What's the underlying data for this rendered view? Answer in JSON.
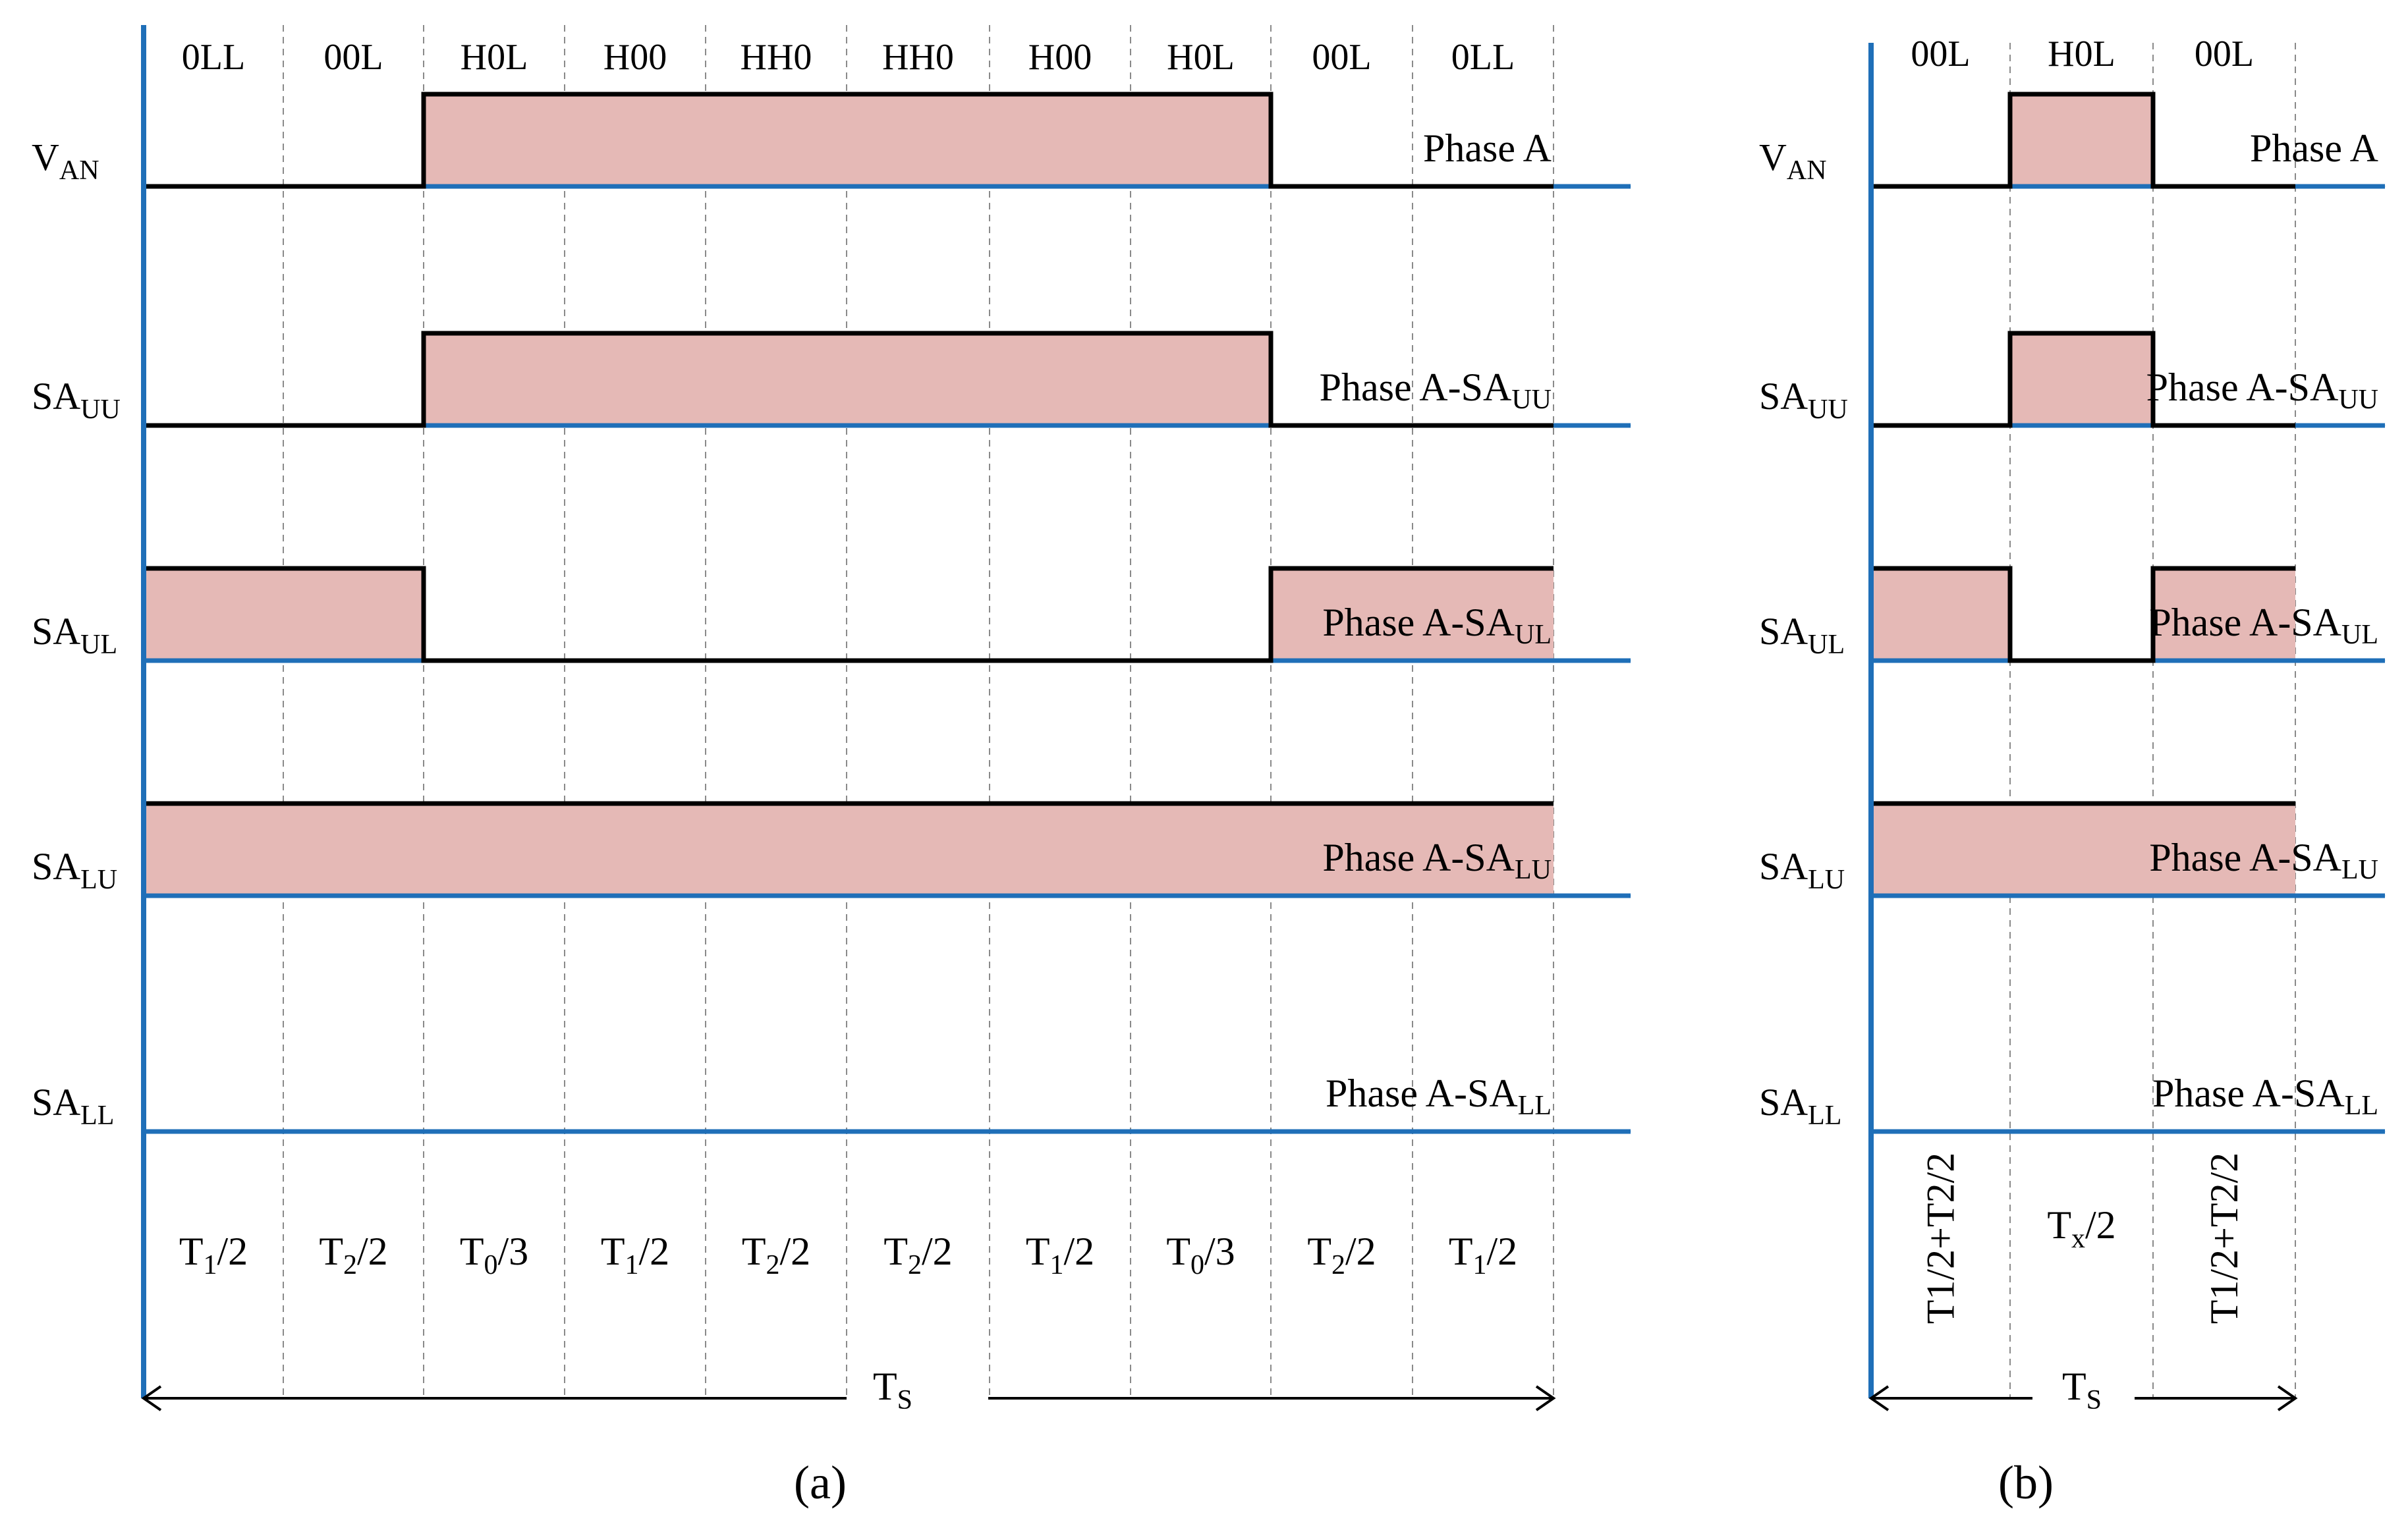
{
  "colors": {
    "axis": "#1f6fb8",
    "signal": "#000000",
    "fill": "#e5b9b6",
    "grid": "#8a8a8a"
  },
  "panel_a": {
    "caption": "(a)",
    "states": [
      "0LL",
      "00L",
      "H0L",
      "H00",
      "HH0",
      "HH0",
      "H00",
      "H0L",
      "00L",
      "0LL"
    ],
    "segments": [
      {
        "base": "T",
        "sub": "1",
        "tail": "/2"
      },
      {
        "base": "T",
        "sub": "2",
        "tail": "/2"
      },
      {
        "base": "T",
        "sub": "0",
        "tail": "/3"
      },
      {
        "base": "T",
        "sub": "1",
        "tail": "/2"
      },
      {
        "base": "T",
        "sub": "2",
        "tail": "/2"
      },
      {
        "base": "T",
        "sub": "2",
        "tail": "/2"
      },
      {
        "base": "T",
        "sub": "1",
        "tail": "/2"
      },
      {
        "base": "T",
        "sub": "0",
        "tail": "/3"
      },
      {
        "base": "T",
        "sub": "2",
        "tail": "/2"
      },
      {
        "base": "T",
        "sub": "1",
        "tail": "/2"
      }
    ],
    "rows": [
      {
        "label_base": "V",
        "label_sub": "AN",
        "plot_text": "Phase A",
        "plot_sub": "",
        "levels": [
          0,
          0,
          1,
          1,
          1,
          1,
          1,
          1,
          0,
          0
        ]
      },
      {
        "label_base": "SA",
        "label_sub": "UU",
        "plot_text": "Phase A-SA",
        "plot_sub": "UU",
        "levels": [
          0,
          0,
          1,
          1,
          1,
          1,
          1,
          1,
          0,
          0
        ]
      },
      {
        "label_base": "SA",
        "label_sub": "UL",
        "plot_text": "Phase A-SA",
        "plot_sub": "UL",
        "levels": [
          1,
          1,
          0,
          0,
          0,
          0,
          0,
          0,
          1,
          1
        ]
      },
      {
        "label_base": "SA",
        "label_sub": "LU",
        "plot_text": "Phase A-SA",
        "plot_sub": "LU",
        "levels": [
          1,
          1,
          1,
          1,
          1,
          1,
          1,
          1,
          1,
          1
        ]
      },
      {
        "label_base": "SA",
        "label_sub": "LL",
        "plot_text": "Phase A-SA",
        "plot_sub": "LL",
        "levels": [
          0,
          0,
          0,
          0,
          0,
          0,
          0,
          0,
          0,
          0
        ]
      }
    ],
    "period": {
      "base": "T",
      "sub": "S"
    }
  },
  "panel_b": {
    "caption": "(b)",
    "states": [
      "00L",
      "H0L",
      "00L"
    ],
    "segments": [
      {
        "text": "T1/2+T2/2",
        "vertical": true
      },
      {
        "base": "T",
        "sub": "x",
        "tail": "/2"
      },
      {
        "text": "T1/2+T2/2",
        "vertical": true
      }
    ],
    "rows": [
      {
        "label_base": "V",
        "label_sub": "AN",
        "plot_text": "Phase A",
        "plot_sub": "",
        "levels": [
          0,
          1,
          0
        ]
      },
      {
        "label_base": "SA",
        "label_sub": "UU",
        "plot_text": "Phase A-SA",
        "plot_sub": "UU",
        "levels": [
          0,
          1,
          0
        ]
      },
      {
        "label_base": "SA",
        "label_sub": "UL",
        "plot_text": "Phase A-SA",
        "plot_sub": "UL",
        "levels": [
          1,
          0,
          1
        ]
      },
      {
        "label_base": "SA",
        "label_sub": "LU",
        "plot_text": "Phase A-SA",
        "plot_sub": "LU",
        "levels": [
          1,
          1,
          1
        ]
      },
      {
        "label_base": "SA",
        "label_sub": "LL",
        "plot_text": "Phase A-SA",
        "plot_sub": "LL",
        "levels": [
          0,
          0,
          0
        ]
      }
    ],
    "period": {
      "base": "T",
      "sub": "S"
    }
  }
}
